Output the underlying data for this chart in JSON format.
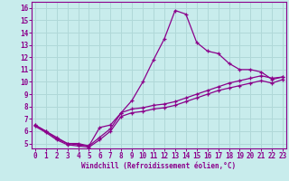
{
  "xlabel": "Windchill (Refroidissement éolien,°C)",
  "bg_color": "#c8ecec",
  "grid_color": "#b0d8d8",
  "line_color": "#8b008b",
  "x_ticks": [
    0,
    1,
    2,
    3,
    4,
    5,
    6,
    7,
    8,
    9,
    10,
    11,
    12,
    13,
    14,
    15,
    16,
    17,
    18,
    19,
    20,
    21,
    22,
    23
  ],
  "y_ticks": [
    5,
    6,
    7,
    8,
    9,
    10,
    11,
    12,
    13,
    14,
    15,
    16
  ],
  "ylim": [
    4.6,
    16.5
  ],
  "xlim": [
    -0.3,
    23.3
  ],
  "line1_x": [
    0,
    1,
    2,
    3,
    4,
    5,
    6,
    7,
    8,
    9,
    10,
    11,
    12,
    13,
    14,
    15,
    16,
    17,
    18,
    19,
    20,
    21,
    22,
    23
  ],
  "line1_y": [
    6.5,
    6.0,
    5.5,
    5.0,
    5.0,
    4.8,
    6.3,
    6.5,
    7.5,
    8.5,
    10.0,
    11.8,
    13.5,
    15.8,
    15.5,
    13.2,
    12.5,
    12.3,
    11.5,
    11.0,
    11.0,
    10.8,
    10.2,
    10.4
  ],
  "line2_x": [
    0,
    1,
    2,
    3,
    4,
    5,
    6,
    7,
    8,
    9,
    10,
    11,
    12,
    13,
    14,
    15,
    16,
    17,
    18,
    19,
    20,
    21,
    22,
    23
  ],
  "line2_y": [
    6.5,
    6.0,
    5.4,
    5.0,
    4.9,
    4.8,
    5.5,
    6.2,
    7.5,
    7.8,
    7.9,
    8.1,
    8.2,
    8.4,
    8.7,
    9.0,
    9.3,
    9.6,
    9.9,
    10.1,
    10.3,
    10.5,
    10.3,
    10.4
  ],
  "line3_x": [
    0,
    1,
    2,
    3,
    4,
    5,
    6,
    7,
    8,
    9,
    10,
    11,
    12,
    13,
    14,
    15,
    16,
    17,
    18,
    19,
    20,
    21,
    22,
    23
  ],
  "line3_y": [
    6.4,
    5.9,
    5.3,
    4.9,
    4.8,
    4.7,
    5.3,
    6.0,
    7.2,
    7.5,
    7.6,
    7.8,
    7.9,
    8.1,
    8.4,
    8.7,
    9.0,
    9.3,
    9.5,
    9.7,
    9.9,
    10.1,
    9.9,
    10.2
  ]
}
